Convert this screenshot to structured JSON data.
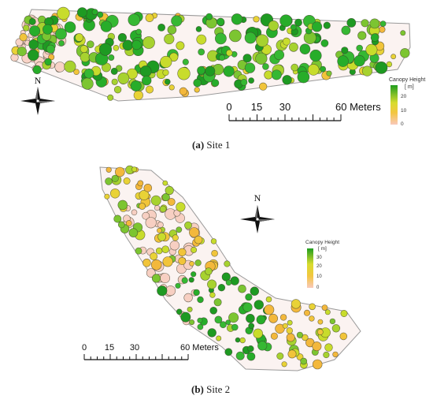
{
  "panel_a": {
    "caption_letter": "(a)",
    "caption_text": "Site 1",
    "north_label": "N",
    "scale_ticks": [
      "0",
      "15",
      "30",
      "60 Meters"
    ],
    "legend": {
      "title": "Canopy Height",
      "unit": "[ m]",
      "values": [
        "20",
        "10",
        "0"
      ]
    }
  },
  "panel_b": {
    "caption_letter": "(b)",
    "caption_text": "Site 2",
    "north_label": "N",
    "scale_ticks": [
      "0",
      "15",
      "30",
      "60 Meters"
    ],
    "legend": {
      "title": "Canopy Height",
      "unit": "[ m]",
      "values": [
        "30",
        "20",
        "10",
        "0"
      ]
    }
  },
  "colors": {
    "high": "#1f9e1f",
    "mid": "#c8d62b",
    "low_mid": "#f2c23a",
    "low": "#f6b9a6",
    "ground": "#f8d8cf",
    "boundary": "#9a9a9a"
  }
}
